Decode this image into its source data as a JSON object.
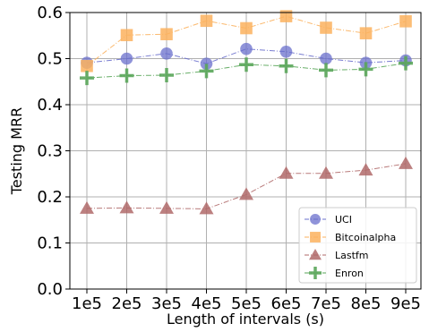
{
  "chart_data": {
    "type": "line",
    "xlabel": "Length of intervals (s)",
    "ylabel": "Testing MRR",
    "categories": [
      "1e5",
      "2e5",
      "3e5",
      "4e5",
      "5e5",
      "6e5",
      "7e5",
      "8e5",
      "9e5"
    ],
    "ylim": [
      0.0,
      0.6
    ],
    "yticks": [
      "0.0",
      "0.1",
      "0.2",
      "0.3",
      "0.4",
      "0.5",
      "0.6"
    ],
    "ytick_values": [
      0.0,
      0.1,
      0.2,
      0.3,
      0.4,
      0.5,
      0.6
    ],
    "grid": true,
    "legend_position": "lower-right",
    "series": [
      {
        "name": "UCI",
        "marker": "circle",
        "color": "#6a6fcc",
        "values": [
          0.491,
          0.5,
          0.511,
          0.489,
          0.521,
          0.515,
          0.5,
          0.491,
          0.496
        ]
      },
      {
        "name": "Bitcoinalpha",
        "marker": "square",
        "color": "#fbb15e",
        "values": [
          0.484,
          0.551,
          0.553,
          0.582,
          0.566,
          0.592,
          0.567,
          0.555,
          0.581
        ]
      },
      {
        "name": "Lastfm",
        "marker": "triangle",
        "color": "#b06a6a",
        "values": [
          0.175,
          0.176,
          0.175,
          0.174,
          0.205,
          0.251,
          0.251,
          0.258,
          0.272
        ]
      },
      {
        "name": "Enron",
        "marker": "plus",
        "color": "#5aa65a",
        "values": [
          0.458,
          0.463,
          0.464,
          0.473,
          0.487,
          0.484,
          0.475,
          0.477,
          0.49
        ]
      }
    ]
  }
}
